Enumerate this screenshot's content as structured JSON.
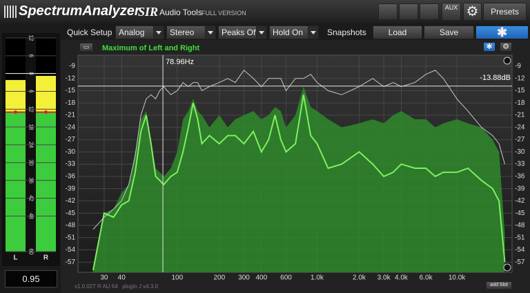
{
  "header": {
    "logo": "SpectrumAnalyzer",
    "brand": "SIR",
    "subtitle": "Audio Tools",
    "edition": "FULL VERSION",
    "aux": "AUX",
    "presets": "Presets"
  },
  "toolbar": {
    "quick_setup": "Quick Setup",
    "dropdowns": [
      "Analog",
      "Stereo",
      "Peaks Off",
      "Hold On"
    ],
    "snapshots": "Snapshots",
    "load": "Load",
    "save": "Save"
  },
  "meter": {
    "channels": [
      "L",
      "R"
    ],
    "levels": [
      -2.2,
      -0.8
    ],
    "holds": [
      -13,
      -13
    ],
    "ylim": [
      -60,
      12
    ],
    "yticks": [
      12,
      6,
      0,
      {
        "value": -6,
        "label": "6"
      },
      {
        "value": -12,
        "label": "12"
      },
      {
        "value": -18,
        "label": "18"
      },
      {
        "value": -24,
        "label": "24"
      },
      {
        "value": -30,
        "label": "30"
      },
      {
        "value": -36,
        "label": "36"
      },
      {
        "value": -42,
        "label": "42"
      },
      {
        "value": -48,
        "label": "48"
      },
      {
        "value": -60,
        "label": "60"
      }
    ],
    "readout": 0.95
  },
  "chart_data": {
    "type": "area",
    "log_x": true,
    "grid": true,
    "x": [
      25,
      30,
      35,
      40,
      45,
      50,
      55,
      60,
      65,
      70,
      75,
      80,
      90,
      100,
      110,
      120,
      130,
      140,
      150,
      170,
      200,
      230,
      260,
      300,
      350,
      400,
      450,
      500,
      550,
      600,
      700,
      800,
      900,
      1000,
      1200,
      1500,
      2000,
      2500,
      3000,
      3500,
      4000,
      5000,
      6000,
      7000,
      8000,
      10000,
      12000,
      15000,
      18000,
      20000,
      22000
    ],
    "series": [
      {
        "name": "Maximum of Left and Right",
        "color": "#2f8a2c",
        "values": [
          -59,
          -45,
          -44,
          -40,
          -38,
          -30,
          -22,
          -20,
          -27,
          -34,
          -35,
          -36,
          -34,
          -30,
          -22,
          -20,
          -17,
          -20,
          -21,
          -24,
          -21,
          -24,
          -22,
          -21,
          -20,
          -22,
          -21,
          -19,
          -20,
          -24,
          -21,
          -14,
          -19,
          -20,
          -22,
          -24,
          -23,
          -22,
          -23,
          -21,
          -20,
          -22,
          -22,
          -24,
          -23,
          -22,
          -23,
          -24,
          -27,
          -30,
          -50
        ]
      },
      {
        "color": "#7ef060",
        "values": [
          -59,
          -45,
          -46,
          -43,
          -42,
          -35,
          -25,
          -21,
          -28,
          -36,
          -37,
          -38,
          -36,
          -35,
          -30,
          -24,
          -18,
          -22,
          -28,
          -26,
          -28,
          -26,
          -26,
          -28,
          -25,
          -30,
          -27,
          -21,
          -27,
          -30,
          -28,
          -16,
          -26,
          -28,
          -34,
          -33,
          -30,
          -33,
          -36,
          -35,
          -33,
          -34,
          -34,
          -36,
          -35,
          -35,
          -34,
          -37,
          -39,
          -42,
          -57
        ]
      },
      {
        "color": "#c8c8c8",
        "values": [
          -49,
          -46,
          -44,
          -42,
          -38,
          -31,
          -21,
          -17,
          -16,
          -17,
          -15,
          -14,
          -16,
          -15,
          -13,
          -14,
          -13,
          -13,
          -15,
          -14,
          -13,
          -12,
          -13,
          -10,
          -12,
          -14,
          -12,
          -12,
          -12,
          -15,
          -12,
          -12,
          -11,
          -13,
          -15,
          -16,
          -14,
          -12,
          -14,
          -13,
          -14,
          -13,
          -11,
          -10,
          -12,
          -17,
          -20,
          -24,
          -26,
          -28,
          -33
        ]
      }
    ],
    "xlim": [
      19.5,
      24800
    ],
    "ylim": [
      -59.5,
      -6.3
    ],
    "xticks": [
      30,
      40,
      100,
      200,
      300,
      400,
      600,
      {
        "value": 1000,
        "label": "1.0k"
      },
      {
        "value": 2000,
        "label": "2.0k"
      },
      {
        "value": 3000,
        "label": "3.0k"
      },
      {
        "value": 4000,
        "label": "4.0k"
      },
      {
        "value": 6000,
        "label": "6.0k"
      },
      {
        "value": 10000,
        "label": "10.0k"
      }
    ],
    "yticks": [
      -9,
      -12,
      -15,
      -18,
      -21,
      -24,
      -27,
      -30,
      -33,
      -36,
      -39,
      -42,
      -45,
      -48,
      -51,
      -54,
      -57
    ],
    "cursor": {
      "x": {
        "value": 78.96,
        "label": "78.96Hz"
      },
      "y": {
        "value": -13.88,
        "label": "-13.88dB"
      }
    }
  },
  "footer": {
    "version": "v1.0.027 R AU 64   plugin J v4.3.0",
    "add_slot": "add Slot"
  }
}
